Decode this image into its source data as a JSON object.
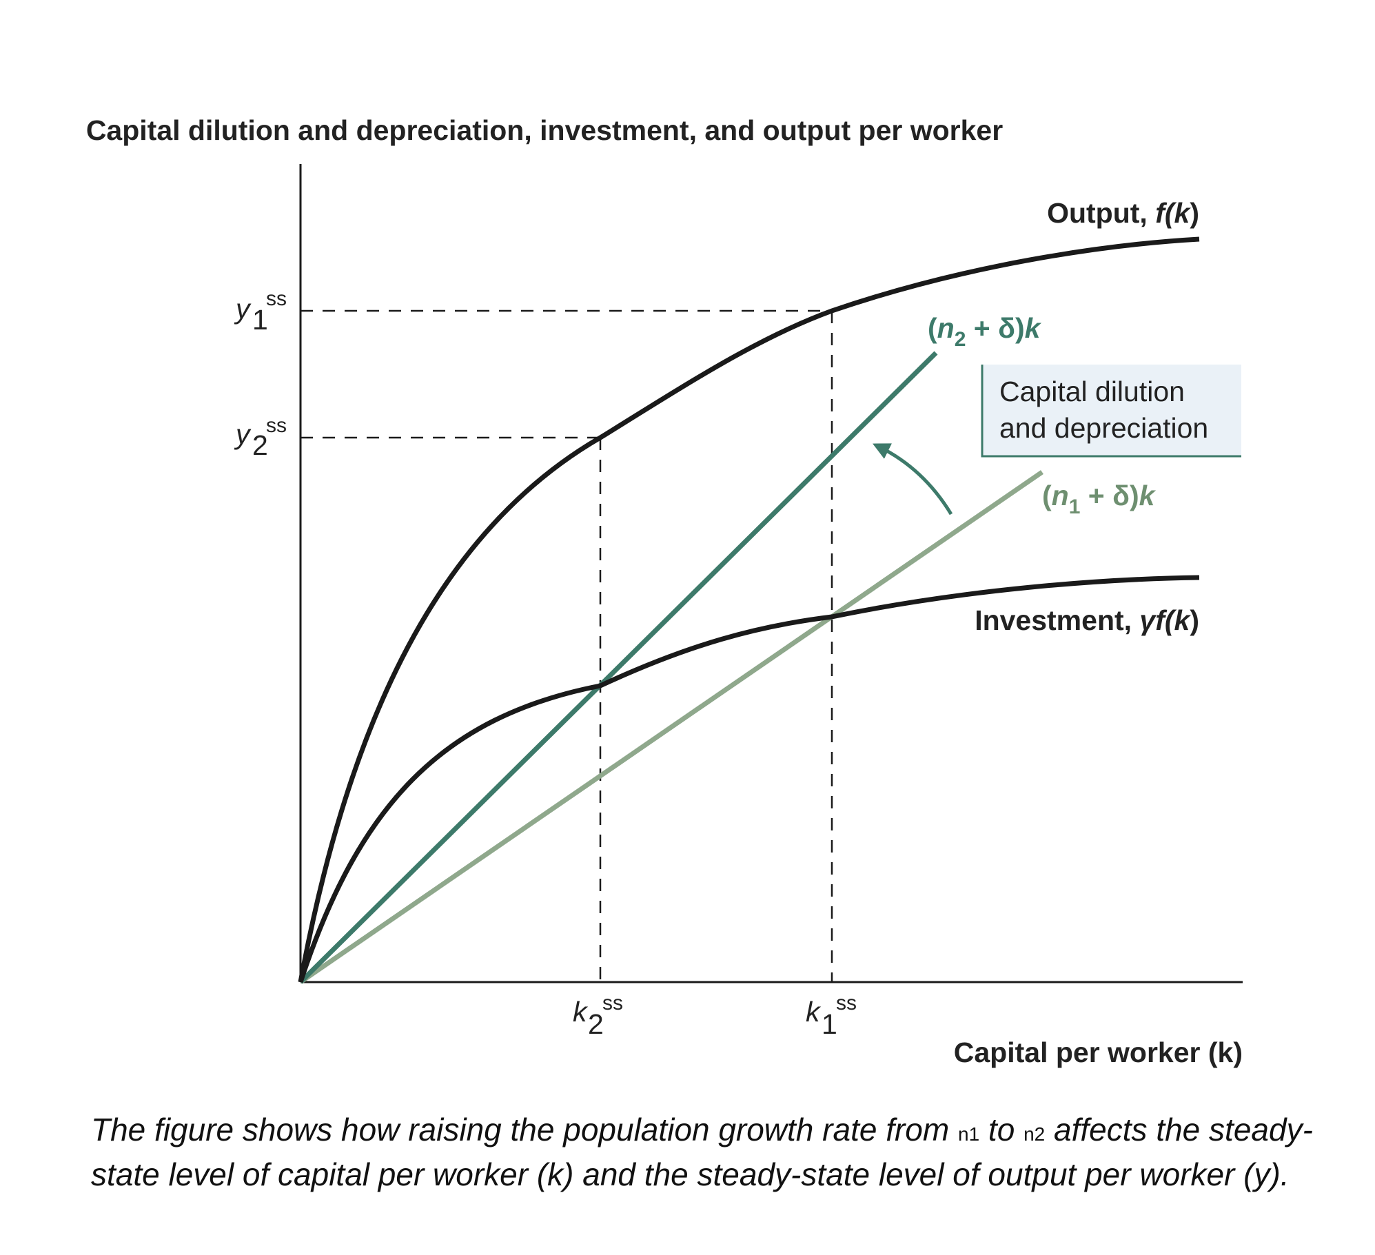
{
  "colors": {
    "curve": "#1a1a1a",
    "n2_line": "#3d7a6a",
    "n1_line": "#8fa88c",
    "box_fill": "#eaf1f7",
    "box_border": "#3d7a6a"
  },
  "diagram": {
    "title": "Capital dilution and depreciation, investment, and output per worker",
    "x_axis_label": "Capital per worker (k)",
    "curves": {
      "output": {
        "label_prefix": "Output, ",
        "label_fn": "f(",
        "label_var": "k",
        "label_close": ")"
      },
      "investment": {
        "label_prefix": "Investment, ",
        "label_fn": "γf(",
        "label_var": "k",
        "label_close": ")"
      },
      "line_n2": {
        "open": "(",
        "n": "n",
        "sub": "2",
        "rest": " + δ)",
        "k": "k"
      },
      "line_n1": {
        "open": "(",
        "n": "n",
        "sub": "1",
        "rest": " + δ)",
        "k": "k"
      }
    },
    "shift_box": {
      "line1": "Capital dilution",
      "line2": "and depreciation"
    },
    "y_ticks": [
      {
        "var": "y",
        "sub": "1",
        "sup": "ss"
      },
      {
        "var": "y",
        "sub": "2",
        "sup": "ss"
      }
    ],
    "x_ticks": [
      {
        "var": "k",
        "sub": "2",
        "sup": "ss"
      },
      {
        "var": "k",
        "sub": "1",
        "sup": "ss"
      }
    ]
  },
  "caption": {
    "part1": "The figure shows how raising the population growth rate from ",
    "n1": "n1",
    "part2": " to ",
    "n2": "n2",
    "part3": " affects the steady-state level of capital per worker (k) and the steady-state level of output per worker (y)."
  }
}
